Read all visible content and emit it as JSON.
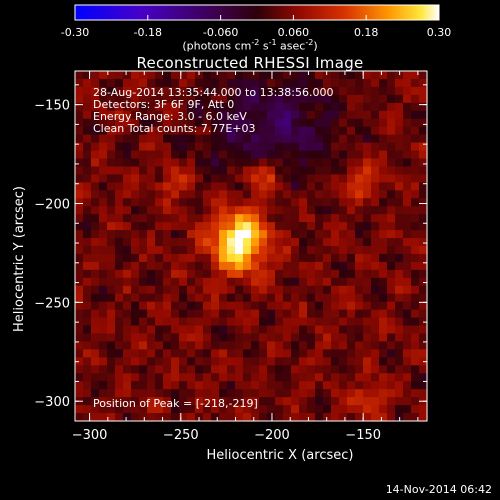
{
  "colorbar": {
    "ticks": [
      "-0.30",
      "-0.18",
      "-0.060",
      "0.060",
      "0.18",
      "0.30"
    ],
    "units_label": "(photons cm",
    "units_exp1": "-2",
    "units_mid": " s",
    "units_exp2": "-1",
    "units_mid2": " asec",
    "units_exp3": "-2",
    "units_end": ")"
  },
  "header": {
    "title": "Reconstructed RHESSI Image"
  },
  "info": {
    "line1": "28-Aug-2014 13:35:44.000 to 13:38:56.000",
    "line2": "Detectors: 3F 6F 9F, Att 0",
    "line3": "Energy Range: 3.0 - 6.0 keV",
    "line4": "Clean    Total counts: 7.77E+03"
  },
  "peak": "Position of Peak = [-218,-219]",
  "footer": {
    "stamp": "14-Nov-2014 06:42"
  },
  "chart_data": {
    "type": "heatmap",
    "title": "Reconstructed RHESSI Image",
    "xlabel": "Heliocentric X (arcsec)",
    "ylabel": "Heliocentric Y (arcsec)",
    "xlim": [
      -308,
      -115
    ],
    "ylim": [
      -310,
      -133
    ],
    "xticks": [
      -300,
      -250,
      -200,
      -150
    ],
    "yticks": [
      -300,
      -250,
      -200,
      -150
    ],
    "zlim": [
      -0.3,
      0.3
    ],
    "peak": {
      "x": -218,
      "y": -219,
      "value": 0.3
    },
    "secondary_sources": [
      {
        "x": -205,
        "y": -186,
        "value": 0.16
      },
      {
        "x": -150,
        "y": -188,
        "value": 0.14
      },
      {
        "x": -148,
        "y": -300,
        "value": 0.12
      },
      {
        "x": -255,
        "y": -190,
        "value": 0.11
      }
    ],
    "negative_region": {
      "x": [
        -240,
        -160
      ],
      "y": [
        -133,
        -190
      ],
      "value": -0.06
    }
  }
}
